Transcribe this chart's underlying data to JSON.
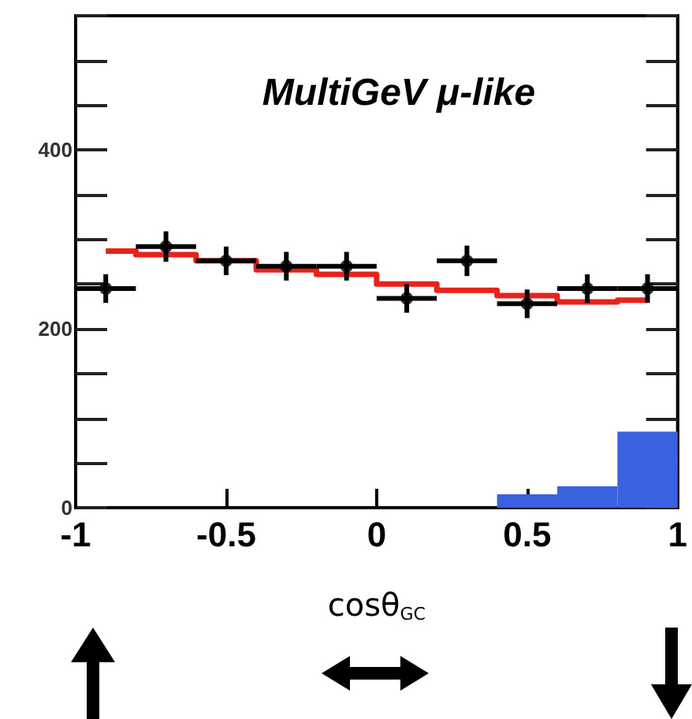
{
  "chart_data": {
    "type": "histogram",
    "title": "MultiGeV μ-like",
    "xlabel": "cosθ$_{GC}$",
    "bins": [
      -1,
      -0.8,
      -0.6,
      -0.4,
      -0.2,
      0,
      0.2,
      0.4,
      0.6,
      0.8,
      1
    ],
    "series": [
      {
        "type": "histogram",
        "color": "#3a62e0",
        "values": [
          0,
          0,
          0,
          0,
          0,
          0,
          0,
          15,
          24,
          85
        ]
      },
      {
        "type": "step",
        "color": "#e8221b",
        "x": [
          -0.9,
          -0.7,
          -0.5,
          -0.3,
          -0.1,
          0.1,
          0.3,
          0.5,
          0.7,
          0.9
        ],
        "values": [
          287,
          283,
          276,
          266,
          261,
          250,
          243,
          237,
          230,
          232
        ]
      },
      {
        "type": "scatter",
        "color": "#000000",
        "marker": "circle",
        "x": [
          -0.9,
          -0.7,
          -0.5,
          -0.3,
          -0.1,
          0.1,
          0.3,
          0.5,
          0.7,
          0.9
        ],
        "values": [
          245,
          292,
          276,
          270,
          270,
          234,
          276,
          228,
          245,
          245
        ],
        "errors": [
          16,
          17,
          16,
          16,
          16,
          16,
          17,
          16,
          16,
          16
        ],
        "xerrors": [
          0.1,
          0.1,
          0.1,
          0.1,
          0.1,
          0.1,
          0.1,
          0.1,
          0.1,
          0.1
        ]
      }
    ],
    "xlim": [
      -1,
      1
    ],
    "xticks": [
      -1,
      -0.5,
      0,
      0.5,
      1
    ],
    "ylim": [
      0,
      550
    ],
    "yticks": [
      0,
      200,
      400
    ],
    "grid": false
  }
}
